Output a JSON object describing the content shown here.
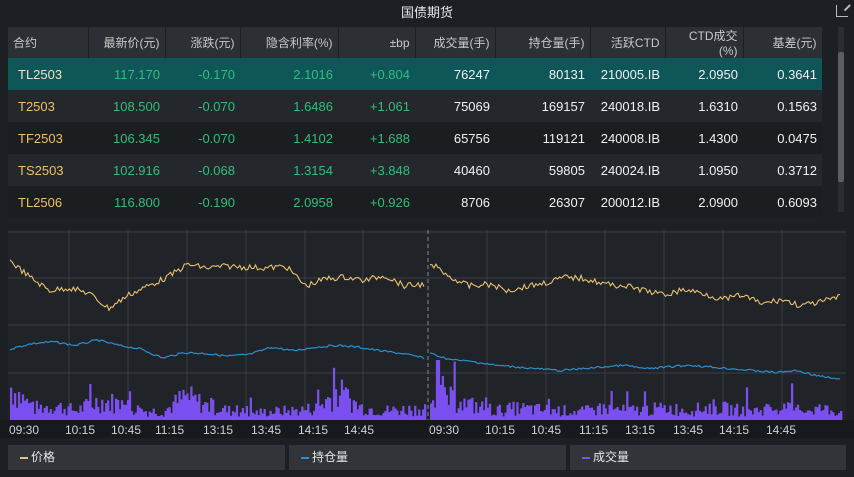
{
  "title": "国债期货",
  "table": {
    "headers": [
      "合约",
      "最新价(元)",
      "涨跌(元)",
      "隐含利率(%)",
      "±bp",
      "成交量(手)",
      "持仓量(手)",
      "活跃CTD",
      "CTD成交(%)",
      "基差(元)"
    ],
    "rows": [
      [
        "TL2503",
        "117.170",
        "-0.170",
        "2.1016",
        "+0.804",
        "76247",
        "80131",
        "210005.IB",
        "2.0950",
        "0.3641"
      ],
      [
        "T2503",
        "108.500",
        "-0.070",
        "1.6486",
        "+1.061",
        "75069",
        "169157",
        "240018.IB",
        "1.6310",
        "0.1563"
      ],
      [
        "TF2503",
        "106.345",
        "-0.070",
        "1.4102",
        "+1.688",
        "65756",
        "119121",
        "240008.IB",
        "1.4300",
        "0.0475"
      ],
      [
        "TS2503",
        "102.916",
        "-0.068",
        "1.3154",
        "+3.848",
        "40460",
        "59805",
        "240024.IB",
        "1.0950",
        "0.3712"
      ],
      [
        "TL2506",
        "116.800",
        "-0.190",
        "2.0958",
        "+0.926",
        "8706",
        "26307",
        "200012.IB",
        "2.0900",
        "0.6093"
      ]
    ]
  },
  "colors": {
    "price": "#e8c170",
    "oi": "#2a8fd0",
    "volume": "#7b4ff0",
    "up": "#2fbf7a",
    "contract": "#f0c060",
    "selected": "#0e5658"
  },
  "chart_data": {
    "type": "line",
    "x_ticks": [
      "09:30",
      "10:15",
      "10:45",
      "11:15",
      "13:15",
      "13:45",
      "14:15",
      "14:45",
      "09:30",
      "10:15",
      "10:45",
      "11:15",
      "13:15",
      "13:45",
      "14:15",
      "14:45"
    ],
    "ylim": [
      0,
      100
    ],
    "series": [
      {
        "name": "价格",
        "day1": [
          88,
          70,
          55,
          58,
          52,
          35,
          50,
          60,
          70,
          84,
          80,
          82,
          81,
          80,
          82,
          60,
          68,
          70,
          66,
          72,
          60,
          62
        ],
        "day2": [
          86,
          70,
          60,
          62,
          55,
          60,
          64,
          70,
          68,
          62,
          60,
          55,
          50,
          56,
          52,
          45,
          50,
          40,
          45,
          38,
          42,
          48
        ]
      },
      {
        "name": "持仓量",
        "day1": [
          60,
          66,
          68,
          64,
          70,
          64,
          60,
          50,
          56,
          55,
          52,
          54,
          62,
          58,
          62,
          64,
          62,
          58,
          55,
          50
        ],
        "day2": [
          55,
          48,
          46,
          42,
          40,
          38,
          36,
          38,
          40,
          42,
          38,
          40,
          42,
          40,
          38,
          36,
          34,
          36,
          30,
          26
        ]
      },
      {
        "name": "成交量",
        "day1": [
          70,
          25,
          30,
          20,
          40,
          35,
          20,
          18,
          50,
          30,
          20,
          15,
          18,
          20,
          25,
          60,
          28,
          20,
          22,
          25
        ],
        "day2": [
          80,
          40,
          30,
          20,
          25,
          22,
          20,
          18,
          25,
          20,
          22,
          25,
          20,
          28,
          22,
          20,
          25,
          22,
          24,
          18
        ]
      }
    ]
  },
  "legend": [
    "价格",
    "持仓量",
    "成交量"
  ]
}
